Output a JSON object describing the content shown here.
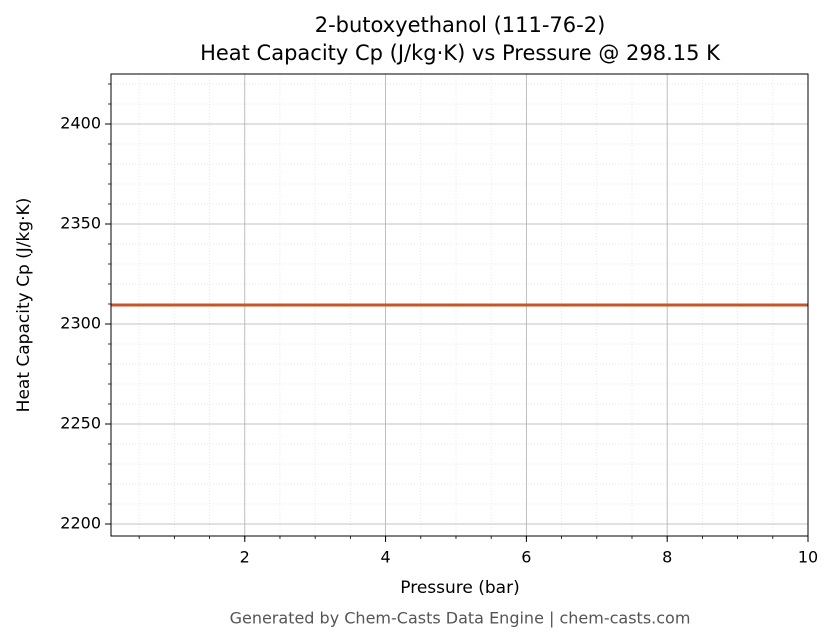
{
  "chart_data": {
    "type": "line",
    "title": "2-butoxyethanol (111-76-2)",
    "subtitle": "Heat Capacity Cp (J/kg·K) vs Pressure @ 298.15 K",
    "x_label": "Pressure (bar)",
    "y_label": "Heat Capacity Cp (J/kg·K)",
    "footer": "Generated by Chem-Casts Data Engine | chem-casts.com",
    "x": [
      0.1,
      10
    ],
    "series": [
      {
        "name": "Cp",
        "color": "#c8552a",
        "values": [
          2309.5,
          2309.5
        ]
      }
    ],
    "xlim": [
      0.1,
      10
    ],
    "xticks": [
      2,
      4,
      6,
      8,
      10
    ],
    "ylim": [
      2194,
      2425
    ],
    "yticks": [
      2200,
      2250,
      2300,
      2350,
      2400
    ],
    "grid": true
  }
}
